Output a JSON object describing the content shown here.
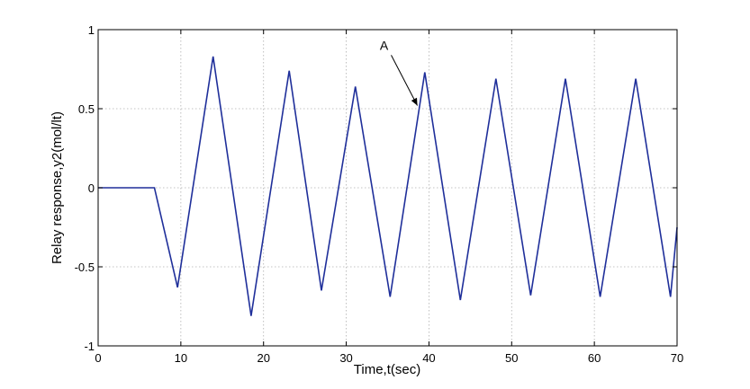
{
  "chart_data": {
    "type": "line",
    "title": "",
    "xlabel": "Time,t(sec)",
    "ylabel": "Relay response,y2(mol/lt)",
    "xlim": [
      0,
      70
    ],
    "ylim": [
      -1,
      1
    ],
    "xticks": [
      0,
      10,
      20,
      30,
      40,
      50,
      60,
      70
    ],
    "yticks": [
      -1,
      -0.5,
      0,
      0.5,
      1
    ],
    "xtick_labels": [
      "0",
      "10",
      "20",
      "30",
      "40",
      "50",
      "60",
      "70"
    ],
    "ytick_labels": [
      "-1",
      "-0.5",
      "0",
      "0.5",
      "1"
    ],
    "grid": true,
    "series": [
      {
        "color": "#1f2f9a",
        "x": [
          0,
          6.8,
          9.6,
          13.9,
          18.5,
          23.1,
          27.0,
          31.1,
          35.3,
          39.5,
          43.8,
          48.1,
          52.3,
          56.5,
          60.7,
          65.0,
          69.2,
          70.0
        ],
        "y": [
          0,
          0,
          -0.63,
          0.83,
          -0.81,
          0.74,
          -0.65,
          0.64,
          -0.69,
          0.73,
          -0.71,
          0.69,
          -0.68,
          0.69,
          -0.69,
          0.69,
          -0.69,
          -0.25
        ]
      }
    ],
    "annotations": [
      {
        "text": "A",
        "arrow_from": [
          35.0,
          0.85
        ],
        "arrow_to": [
          38.6,
          0.52
        ]
      }
    ]
  }
}
